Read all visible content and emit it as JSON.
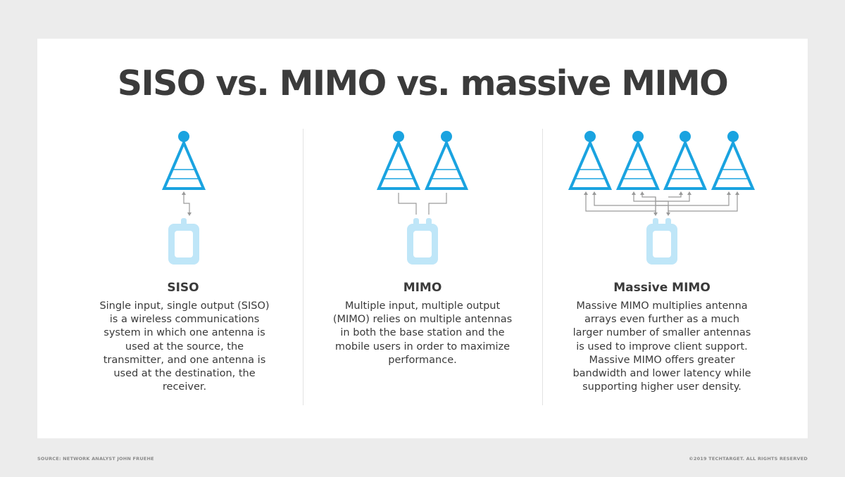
{
  "title": "SISO vs. MIMO vs. massive MIMO",
  "colors": {
    "antenna": "#1aa3e0",
    "device": "#bfe6f8",
    "connector": "#9a9a9a",
    "text": "#3a3a3a",
    "background": "#ececec",
    "card": "#ffffff"
  },
  "columns": [
    {
      "title": "SISO",
      "description": "Single input, single output (SISO) is a wireless communications system in which one antenna is used at the source, the transmitter, and one antenna is used at the destination, the receiver.",
      "antenna_count": 1,
      "device_ports": 1
    },
    {
      "title": "MIMO",
      "description": "Multiple input, multiple output (MIMO) relies on multiple antennas in both the base station and the mobile users in order to maximize performance.",
      "antenna_count": 2,
      "device_ports": 2
    },
    {
      "title": "Massive MIMO",
      "description": "Massive MIMO multiplies antenna arrays even further as a much larger number of smaller antennas is used to improve client support. Massive MIMO offers greater bandwidth and lower latency while supporting higher user density.",
      "antenna_count": 4,
      "device_ports": 2
    }
  ],
  "footer": {
    "source": "SOURCE: NETWORK ANALYST JOHN FRUEHE",
    "copyright": "©2019 TECHTARGET. ALL RIGHTS RESERVED"
  }
}
